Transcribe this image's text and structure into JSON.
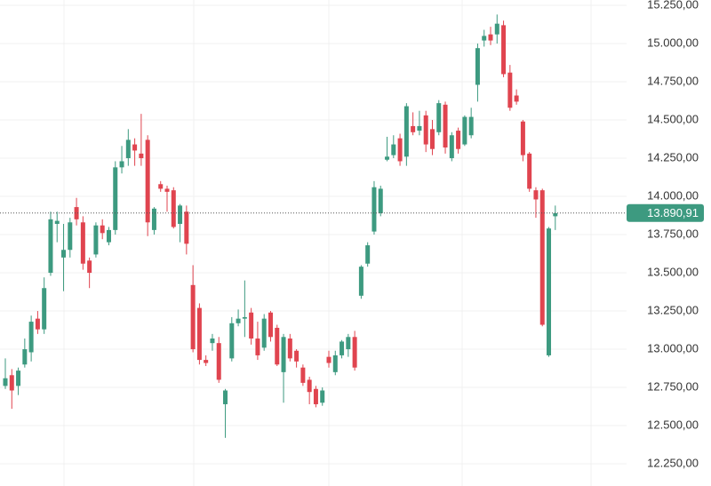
{
  "chart_data": {
    "type": "candlestick",
    "up_color": "#3d9a80",
    "down_color": "#e0444f",
    "grid": true,
    "ylim": [
      12105,
      15285
    ],
    "yticks": [
      {
        "value": 12250,
        "label": "12.250,00"
      },
      {
        "value": 12500,
        "label": "12.500,00"
      },
      {
        "value": 12750,
        "label": "12.750,00"
      },
      {
        "value": 13000,
        "label": "13.000,00"
      },
      {
        "value": 13250,
        "label": "13.250,00"
      },
      {
        "value": 13500,
        "label": "13.500,00"
      },
      {
        "value": 13750,
        "label": "13.750,00"
      },
      {
        "value": 14000,
        "label": "14.000,00"
      },
      {
        "value": 14250,
        "label": "14.250,00"
      },
      {
        "value": 14500,
        "label": "14.500,00"
      },
      {
        "value": 14750,
        "label": "14.750,00"
      },
      {
        "value": 15000,
        "label": "15.000,00"
      },
      {
        "value": 15250,
        "label": "15.250,00"
      }
    ],
    "last_price": {
      "value": 13890.91,
      "label": "13.890,91"
    },
    "open": [
      12760,
      12830,
      12760,
      12900,
      12980,
      13200,
      13130,
      13500,
      13820,
      13600,
      13650,
      13930,
      13830,
      13580,
      13620,
      13810,
      13700,
      13780,
      14190,
      14250,
      14340,
      14280,
      14370,
      13780,
      14080,
      14050,
      14040,
      13820,
      13900,
      13420,
      13270,
      12930,
      13040,
      13040,
      12640,
      12940,
      13170,
      13200,
      13240,
      13070,
      13010,
      13240,
      13140,
      12850,
      13070,
      12990,
      12880,
      12800,
      12740,
      12650,
      12950,
      12850,
      12960,
      13000,
      13080,
      13350,
      13560,
      13770,
      13890,
      14240,
      14270,
      14380,
      14260,
      14460,
      14430,
      14530,
      14440,
      14420,
      14600,
      14250,
      14430,
      14340,
      14400,
      14730,
      15020,
      15060,
      15060,
      15120,
      14810,
      14660,
      14490,
      14280,
      14040,
      14040,
      12960,
      13870
    ],
    "high": [
      12940,
      12870,
      12880,
      13070,
      13220,
      13250,
      13470,
      13900,
      13900,
      13820,
      13860,
      13990,
      13870,
      13600,
      13830,
      13850,
      13800,
      14230,
      14330,
      14440,
      14380,
      14540,
      14400,
      13930,
      14100,
      14070,
      14060,
      13950,
      13940,
      13550,
      13300,
      12960,
      13100,
      13080,
      12740,
      13210,
      13260,
      13450,
      13270,
      13180,
      13230,
      13250,
      13160,
      13100,
      13100,
      13000,
      12900,
      12820,
      12760,
      12750,
      12990,
      12990,
      13060,
      13100,
      13120,
      13550,
      13700,
      14100,
      14070,
      14390,
      14400,
      14410,
      14610,
      14550,
      14560,
      14560,
      14500,
      14630,
      14620,
      14420,
      14450,
      14530,
      14580,
      15000,
      15090,
      15110,
      15190,
      15150,
      14860,
      14700,
      14500,
      14290,
      14060,
      14050,
      13800,
      13940
    ],
    "low": [
      12740,
      12610,
      12700,
      12880,
      12920,
      13100,
      13100,
      13480,
      13700,
      13380,
      13600,
      13810,
      13520,
      13400,
      13600,
      13720,
      13680,
      13750,
      14150,
      14200,
      14200,
      14200,
      13740,
      13750,
      14030,
      13900,
      13790,
      13700,
      13620,
      12980,
      12900,
      12890,
      12990,
      12780,
      12420,
      12920,
      13150,
      13080,
      13030,
      12930,
      12990,
      13050,
      12890,
      12650,
      12920,
      12880,
      12760,
      12640,
      12620,
      12630,
      12880,
      12830,
      12940,
      12950,
      12860,
      13330,
      13540,
      13750,
      13870,
      14230,
      14250,
      14200,
      14200,
      14400,
      14400,
      14290,
      14270,
      14400,
      14280,
      14230,
      14280,
      14330,
      14380,
      14620,
      14980,
      14990,
      15000,
      14780,
      14560,
      14600,
      14230,
      14030,
      13860,
      13150,
      12950,
      13780
    ],
    "close": [
      12810,
      12730,
      12860,
      13000,
      13180,
      13130,
      13400,
      13850,
      13840,
      13650,
      13830,
      13850,
      13560,
      13500,
      13810,
      13760,
      13780,
      14190,
      14230,
      14370,
      14300,
      14250,
      13830,
      13920,
      14050,
      14030,
      13800,
      13940,
      13690,
      13000,
      12930,
      12910,
      13070,
      12800,
      12730,
      13170,
      13200,
      13210,
      13070,
      12960,
      13200,
      13080,
      12900,
      13080,
      12940,
      12920,
      12780,
      12720,
      12640,
      12730,
      12910,
      12960,
      13050,
      13080,
      12880,
      13540,
      13680,
      14060,
      14050,
      14260,
      14340,
      14230,
      14590,
      14420,
      14460,
      14340,
      14310,
      14610,
      14320,
      14400,
      14310,
      14520,
      14520,
      14970,
      15050,
      15020,
      15130,
      14800,
      14580,
      14620,
      14270,
      14050,
      13980,
      13160,
      13790,
      13890
    ]
  }
}
